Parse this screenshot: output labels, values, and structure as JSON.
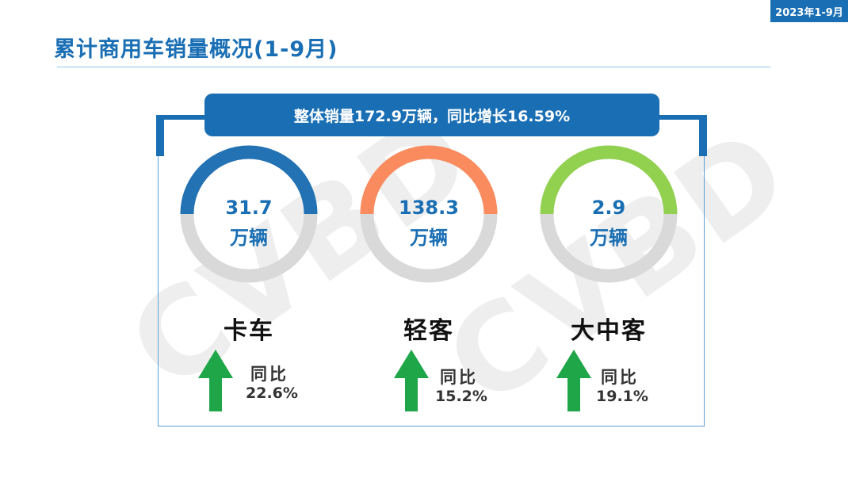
{
  "header": {
    "date_badge": "2023年1-9月",
    "title": "累计商用车销量概况(1-9月)"
  },
  "summary": {
    "text": "整体销量172.9万辆，同比增长16.59%"
  },
  "watermark": "CVBD",
  "cards": [
    {
      "value": "31.7",
      "unit": "万辆",
      "category": "卡车",
      "yoy_label": "同比",
      "yoy_value": "22.6%",
      "ring_color": "#2272b4",
      "trend_icon": "up-arrow-icon"
    },
    {
      "value": "138.3",
      "unit": "万辆",
      "category": "轻客",
      "yoy_label": "同比",
      "yoy_value": "15.2%",
      "ring_color": "#f98b5e",
      "trend_icon": "up-arrow-icon"
    },
    {
      "value": "2.9",
      "unit": "万辆",
      "category": "大中客",
      "yoy_label": "同比",
      "yoy_value": "19.1%",
      "ring_color": "#92d050",
      "trend_icon": "up-arrow-icon"
    }
  ],
  "colors": {
    "brand_blue": "#1a6fb4",
    "ring_gray": "#d9d9d9",
    "arrow_green": "#1fa649"
  }
}
